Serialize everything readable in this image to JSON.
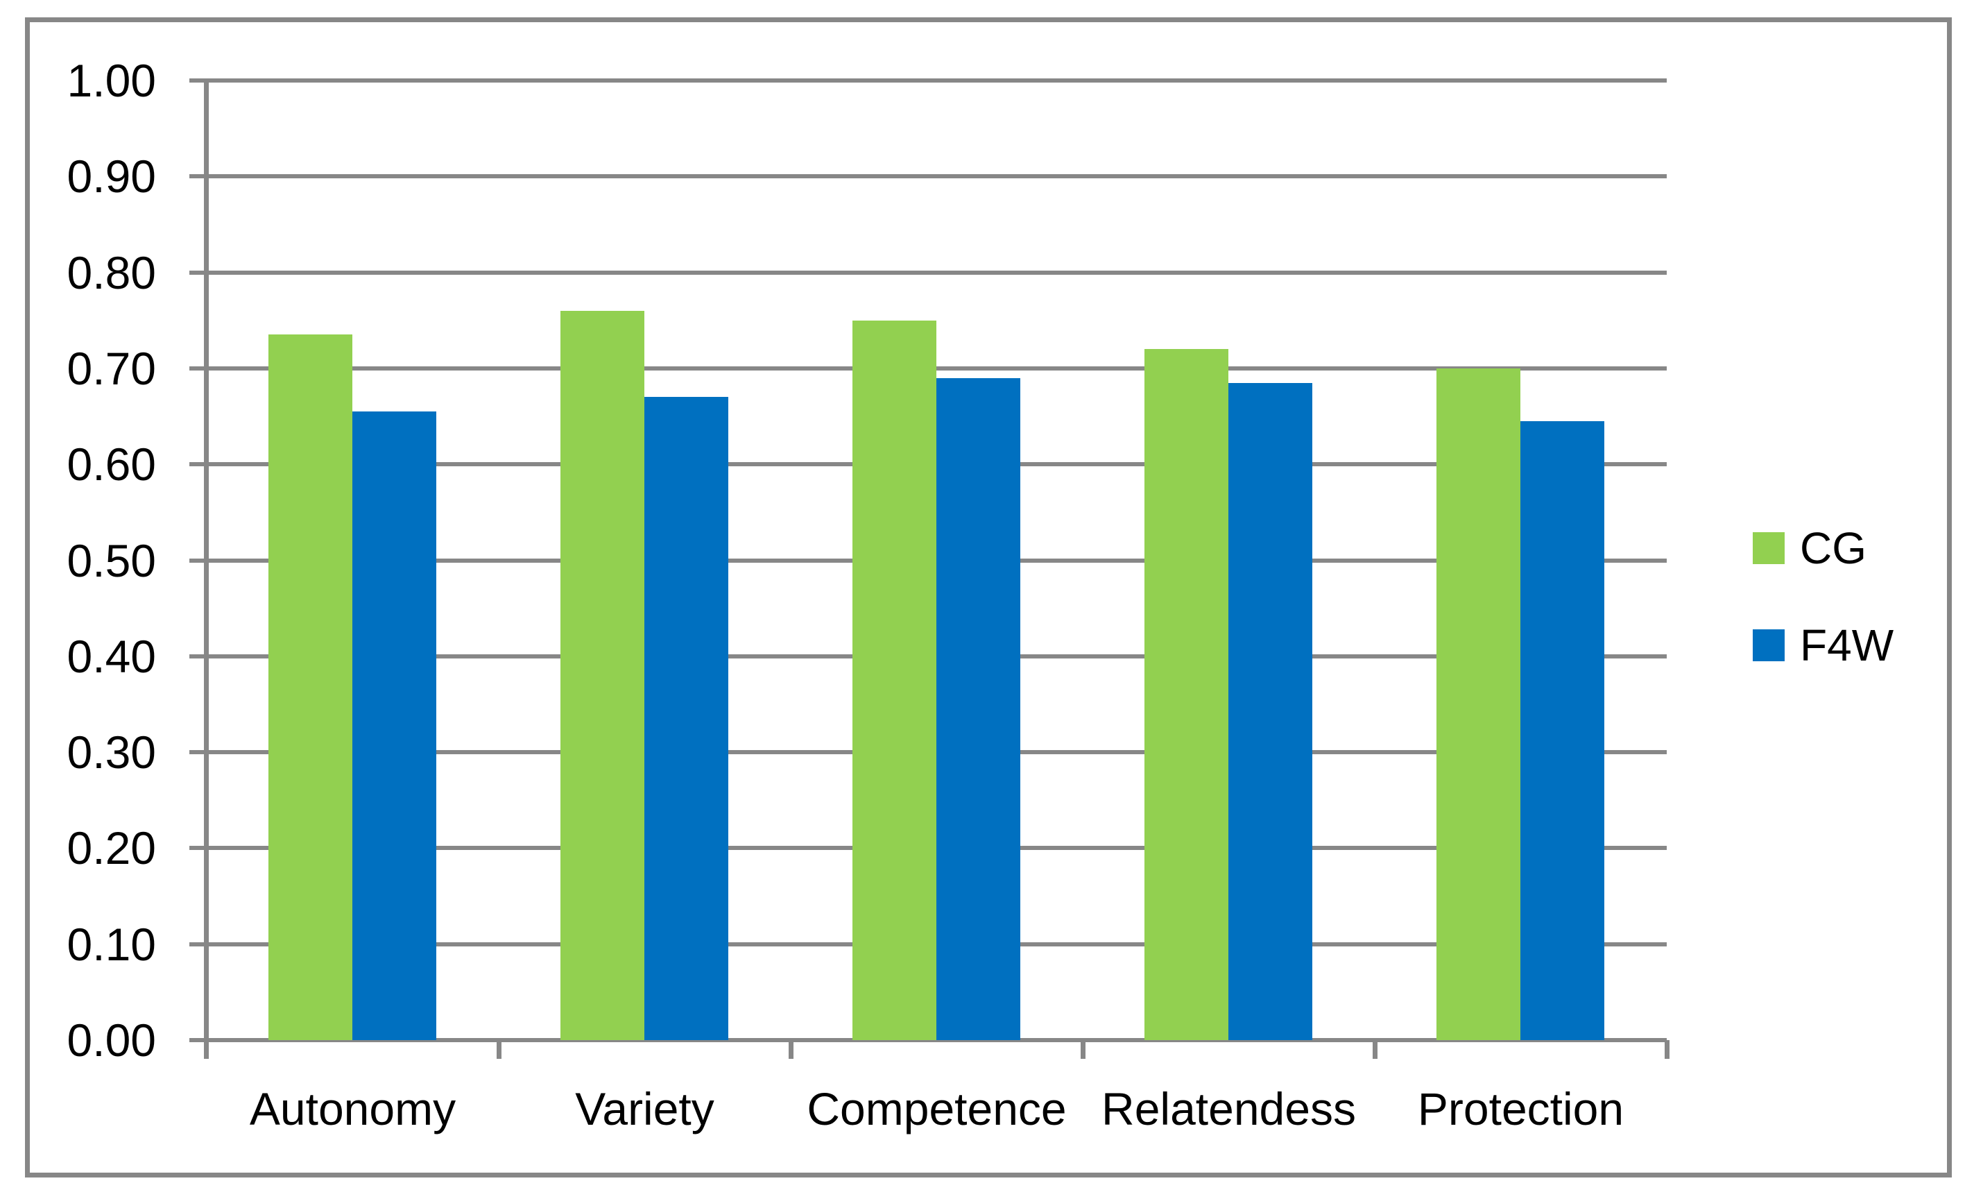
{
  "figure": {
    "background": "#FFFFFF",
    "border_color": "#878787"
  },
  "chart_data": {
    "type": "bar",
    "title": "",
    "categories": [
      "Autonomy",
      "Variety",
      "Competence",
      "Relatendess",
      "Protection"
    ],
    "series": [
      {
        "name": "CG",
        "color": "#92D050",
        "values": [
          0.735,
          0.76,
          0.75,
          0.72,
          0.7
        ]
      },
      {
        "name": "F4W",
        "color": "#0070C0",
        "values": [
          0.655,
          0.67,
          0.69,
          0.685,
          0.645
        ]
      }
    ],
    "xlabel": "",
    "ylabel": "",
    "ylim": [
      0,
      1
    ],
    "ytick_step": 0.1,
    "ytick_labels": [
      "0.00",
      "0.10",
      "0.20",
      "0.30",
      "0.40",
      "0.50",
      "0.60",
      "0.70",
      "0.80",
      "0.90",
      "1.00"
    ],
    "grid": true,
    "gridline_color": "#878787",
    "axis_color": "#878787",
    "text_color": "#000000",
    "legend_position": "middle-right",
    "legend": [
      {
        "label": "CG",
        "color": "#92D050"
      },
      {
        "label": "F4W",
        "color": "#0070C0"
      }
    ]
  }
}
